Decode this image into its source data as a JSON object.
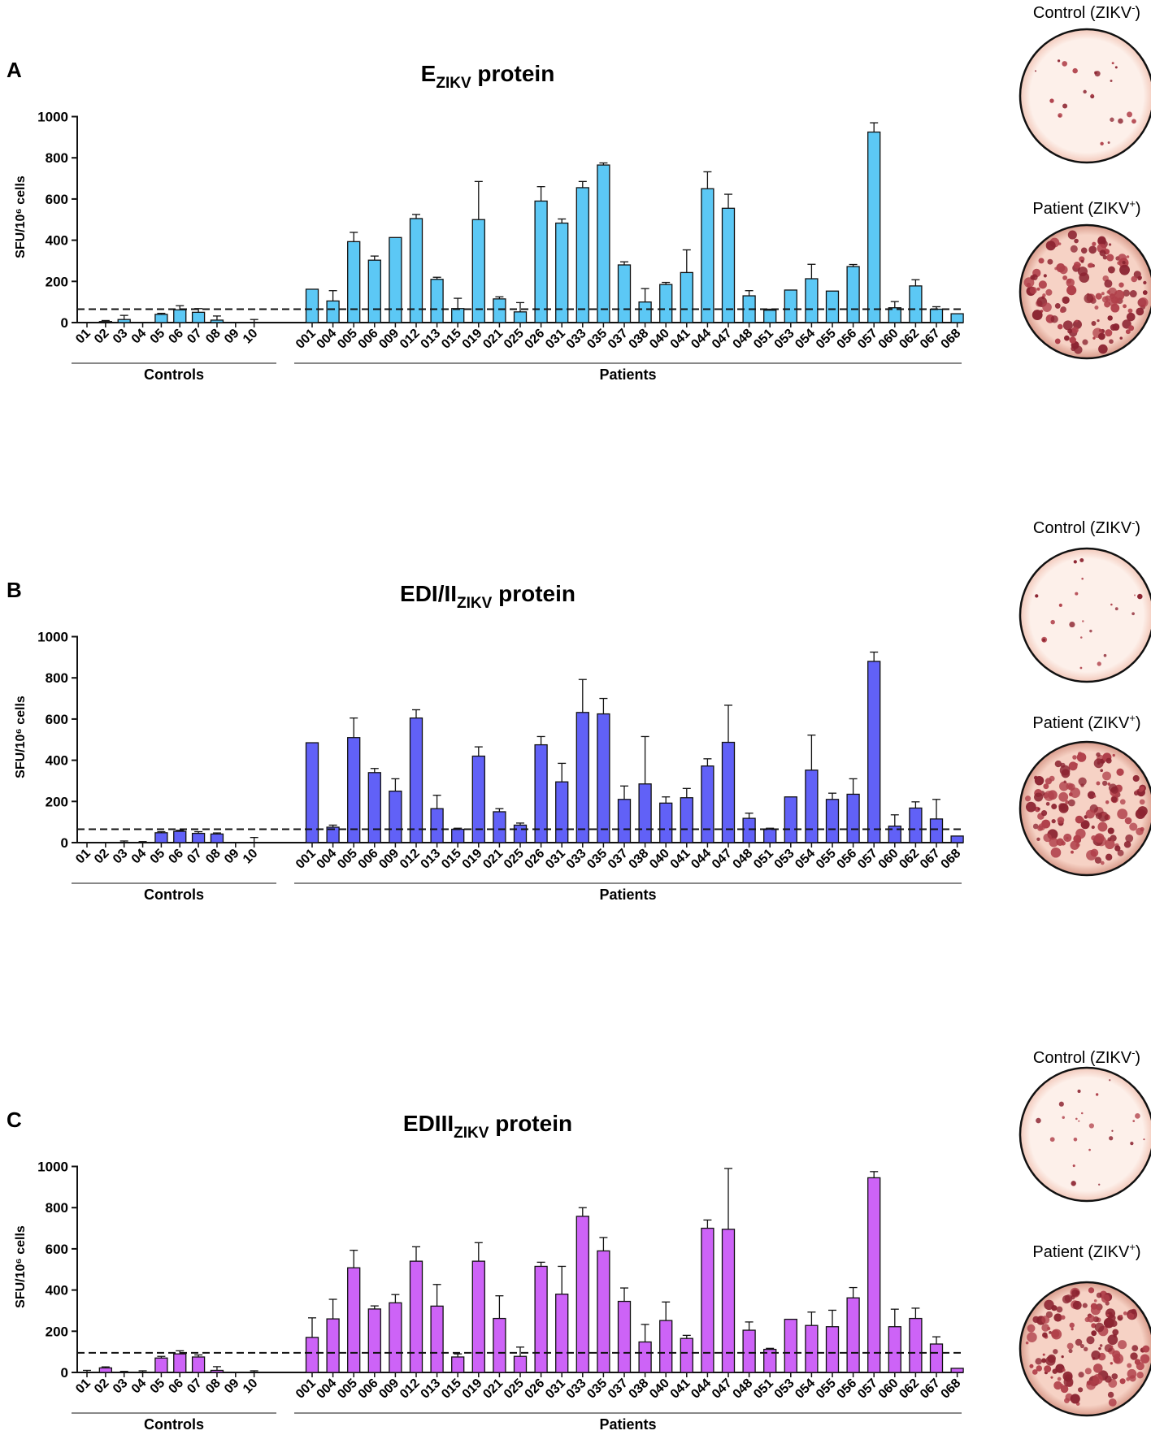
{
  "figure": {
    "panels": [
      "A",
      "B",
      "C"
    ]
  },
  "chart_data": [
    {
      "panel": "A",
      "type": "bar",
      "title": "EZIKV protein",
      "title_main": "E",
      "title_sub": "ZIKV",
      "title_suffix": " protein",
      "ylabel": "SFU/10⁶ cells",
      "ylim": [
        0,
        1000
      ],
      "yticks": [
        0,
        200,
        400,
        600,
        800,
        1000
      ],
      "threshold": 65,
      "color": "#5cc8f5",
      "groups": [
        {
          "name": "Controls",
          "categories": [
            "01",
            "02",
            "03",
            "04",
            "05",
            "06",
            "07",
            "08",
            "09",
            "10"
          ],
          "values": [
            0,
            5,
            15,
            0,
            40,
            62,
            50,
            12,
            0,
            0
          ],
          "errors": [
            0,
            5,
            20,
            0,
            5,
            20,
            18,
            20,
            0,
            15
          ]
        },
        {
          "name": "Patients",
          "categories": [
            "001",
            "004",
            "005",
            "006",
            "009",
            "012",
            "013",
            "015",
            "019",
            "021",
            "025",
            "026",
            "031",
            "033",
            "035",
            "037",
            "038",
            "040",
            "041",
            "044",
            "047",
            "048",
            "051",
            "053",
            "054",
            "055",
            "056",
            "057",
            "060",
            "062",
            "067",
            "068"
          ],
          "values": [
            162,
            105,
            393,
            303,
            413,
            505,
            210,
            68,
            500,
            115,
            52,
            590,
            483,
            655,
            765,
            280,
            100,
            185,
            243,
            650,
            555,
            130,
            60,
            158,
            213,
            153,
            272,
            925,
            72,
            178,
            65,
            43
          ],
          "errors": [
            0,
            50,
            45,
            20,
            0,
            20,
            10,
            50,
            185,
            10,
            45,
            70,
            20,
            30,
            10,
            15,
            65,
            10,
            110,
            82,
            68,
            25,
            5,
            0,
            70,
            0,
            10,
            45,
            30,
            30,
            12,
            0
          ]
        }
      ]
    },
    {
      "panel": "B",
      "type": "bar",
      "title": "EDI/IIZIKV protein",
      "title_main": "EDI/II",
      "title_sub": "ZIKV",
      "title_suffix": " protein",
      "ylabel": "SFU/10⁶ cells",
      "ylim": [
        0,
        1000
      ],
      "yticks": [
        0,
        200,
        400,
        600,
        800,
        1000
      ],
      "threshold": 65,
      "color": "#6161f7",
      "groups": [
        {
          "name": "Controls",
          "categories": [
            "01",
            "02",
            "03",
            "04",
            "05",
            "06",
            "07",
            "08",
            "09",
            "10"
          ],
          "values": [
            0,
            0,
            0,
            0,
            48,
            55,
            45,
            42,
            0,
            0
          ],
          "errors": [
            0,
            0,
            8,
            5,
            5,
            5,
            8,
            5,
            0,
            25
          ]
        },
        {
          "name": "Patients",
          "categories": [
            "001",
            "004",
            "005",
            "006",
            "009",
            "012",
            "013",
            "015",
            "019",
            "021",
            "025",
            "026",
            "031",
            "033",
            "035",
            "037",
            "038",
            "040",
            "041",
            "044",
            "047",
            "048",
            "051",
            "053",
            "054",
            "055",
            "056",
            "057",
            "060",
            "062",
            "067",
            "068"
          ],
          "values": [
            485,
            75,
            510,
            340,
            250,
            605,
            165,
            65,
            420,
            150,
            85,
            475,
            295,
            632,
            625,
            210,
            285,
            192,
            218,
            372,
            487,
            118,
            65,
            222,
            352,
            210,
            235,
            880,
            80,
            168,
            115,
            32
          ],
          "errors": [
            0,
            10,
            95,
            20,
            60,
            40,
            65,
            5,
            45,
            15,
            10,
            40,
            90,
            160,
            75,
            65,
            230,
            30,
            45,
            35,
            180,
            25,
            5,
            0,
            170,
            30,
            75,
            45,
            55,
            30,
            95,
            0
          ]
        }
      ]
    },
    {
      "panel": "C",
      "type": "bar",
      "title": "EDIIIZIKV protein",
      "title_main": "EDIII",
      "title_sub": "ZIKV",
      "title_suffix": " protein",
      "ylabel": "SFU/10⁶ cells",
      "ylim": [
        0,
        1000
      ],
      "yticks": [
        0,
        200,
        400,
        600,
        800,
        1000
      ],
      "threshold": 95,
      "color": "#cd63f7",
      "groups": [
        {
          "name": "Controls",
          "categories": [
            "01",
            "02",
            "03",
            "04",
            "05",
            "06",
            "07",
            "08",
            "09",
            "10"
          ],
          "values": [
            0,
            22,
            0,
            0,
            70,
            90,
            75,
            10,
            0,
            0
          ],
          "errors": [
            10,
            5,
            5,
            8,
            8,
            15,
            10,
            18,
            0,
            8
          ]
        },
        {
          "name": "Patients",
          "categories": [
            "001",
            "004",
            "005",
            "006",
            "009",
            "012",
            "013",
            "015",
            "019",
            "021",
            "025",
            "026",
            "031",
            "033",
            "035",
            "037",
            "038",
            "040",
            "041",
            "044",
            "047",
            "048",
            "051",
            "053",
            "054",
            "055",
            "056",
            "057",
            "060",
            "062",
            "067",
            "068"
          ],
          "values": [
            170,
            260,
            508,
            308,
            338,
            540,
            322,
            75,
            540,
            262,
            78,
            515,
            380,
            758,
            590,
            345,
            148,
            252,
            165,
            700,
            695,
            205,
            112,
            258,
            228,
            222,
            362,
            945,
            222,
            262,
            138,
            20
          ],
          "errors": [
            95,
            95,
            85,
            15,
            40,
            70,
            105,
            15,
            90,
            110,
            45,
            20,
            135,
            42,
            65,
            65,
            85,
            90,
            15,
            40,
            295,
            40,
            5,
            0,
            65,
            80,
            50,
            30,
            85,
            50,
            35,
            0
          ]
        }
      ]
    }
  ],
  "plates": [
    {
      "panel": "A",
      "control_label": "Control (ZIKV",
      "control_sup": "-",
      "patient_label": "Patient (ZIKV",
      "patient_sup": "+",
      "close": ")"
    },
    {
      "panel": "B",
      "control_label": "Control (ZIKV",
      "control_sup": "-",
      "patient_label": "Patient (ZIKV",
      "patient_sup": "+",
      "close": ")"
    },
    {
      "panel": "C",
      "control_label": "Control (ZIKV",
      "control_sup": "-",
      "patient_label": "Patient (ZIKV",
      "patient_sup": "+",
      "close": ")"
    }
  ]
}
